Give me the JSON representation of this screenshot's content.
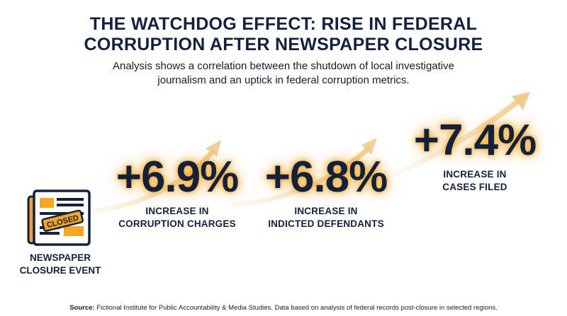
{
  "title": {
    "line1": "THE WATCHDOG EFFECT: RISE IN FEDERAL",
    "line2": "CORRUPTION AFTER NEWSPAPER CLOSURE"
  },
  "subtitle": {
    "line1": "Analysis shows a correlation between the shutdown of local investigative",
    "line2": "journalism and an uptick in federal corruption metrics."
  },
  "event": {
    "icon": "closed-newspaper-icon",
    "stamp_text": "CLOSED",
    "label_line1": "NEWSPAPER",
    "label_line2": "CLOSURE EVENT"
  },
  "stats": [
    {
      "value": "+6.9%",
      "label_line1": "INCREASE IN",
      "label_line2": "CORRUPTION CHARGES"
    },
    {
      "value": "+6.8%",
      "label_line1": "INCREASE IN",
      "label_line2": "INDICTED DEFENDANTS"
    },
    {
      "value": "+7.4%",
      "label_line1": "INCREASE IN",
      "label_line2": "CASES FILED"
    }
  ],
  "source": {
    "prefix": "Source:",
    "text": "Fictional Institute for Public Accountability & Media Studies. Data based on analysis of federal records post-closure in selected regions."
  },
  "colors": {
    "navy": "#14213d",
    "accent": "#f5a623",
    "arrow": "#f3d9a8"
  }
}
